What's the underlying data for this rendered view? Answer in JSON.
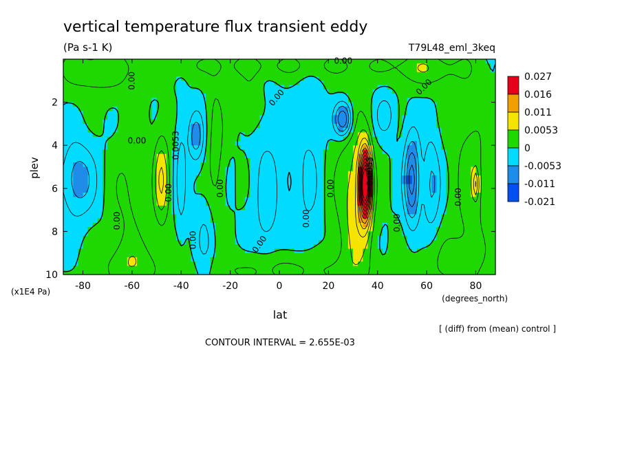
{
  "chart_data": {
    "type": "heatmap",
    "title": "vertical temperature flux transient eddy",
    "units": "(Pa s-1 K)",
    "experiment": "T79L48_eml_3keq",
    "xlabel": "lat",
    "xunits": "(degrees_north)",
    "ylabel": "plev",
    "yunits": "(x1E4 Pa)",
    "xlim": [
      -88,
      88
    ],
    "ylim": [
      10,
      0
    ],
    "x_ticks": [
      -80,
      -60,
      -40,
      -20,
      0,
      20,
      40,
      60,
      80
    ],
    "y_ticks": [
      2,
      4,
      6,
      8,
      10
    ],
    "legend_levels": [
      "0.027",
      "0.016",
      "0.011",
      "0.0053",
      "0",
      "-0.0053",
      "-0.011",
      "-0.021"
    ],
    "legend_colors": [
      "#e8001a",
      "#f2a000",
      "#f5e400",
      "#1ed800",
      "#00dcff",
      "#1e8ce8",
      "#0050f0"
    ],
    "contour_labels": [
      "0.00",
      "0.00",
      "0.00",
      "0.00",
      "0.00",
      "0.00",
      "0.00",
      "0.00",
      "0.00",
      "0.00",
      "0.00",
      "0.00",
      "0.00",
      "0.00",
      "0.0053",
      "0.0053"
    ],
    "contour_interval": "CONTOUR INTERVAL = 2.655E-03",
    "note": "[ (diff) from (mean) control ]"
  },
  "features": [
    {
      "lat": -82,
      "p": 5.6,
      "val": -0.007,
      "wx": 5,
      "wp": 1.2
    },
    {
      "lat": -62,
      "p": 6.5,
      "val": 0.003,
      "wx": 5,
      "wp": 2.2
    },
    {
      "lat": -48,
      "p": 5.6,
      "val": 0.008,
      "wx": 2.2,
      "wp": 1.5
    },
    {
      "lat": -40,
      "p": 5.5,
      "val": -0.004,
      "wx": 1.5,
      "wp": 2
    },
    {
      "lat": -34,
      "p": 3.6,
      "val": -0.007,
      "wx": 2.2,
      "wp": 0.8
    },
    {
      "lat": -26,
      "p": 4.2,
      "val": 0.004,
      "wx": 2.5,
      "wp": 2.5
    },
    {
      "lat": -30,
      "p": 8.5,
      "val": -0.003,
      "wx": 3,
      "wp": 1.5
    },
    {
      "lat": -5,
      "p": 6.5,
      "val": -0.004,
      "wx": 4,
      "wp": 2.5
    },
    {
      "lat": -12,
      "p": 2,
      "val": 0.003,
      "wx": 3,
      "wp": 1
    },
    {
      "lat": 12,
      "p": 5.5,
      "val": -0.003,
      "wx": 4,
      "wp": 3
    },
    {
      "lat": 26,
      "p": 2.8,
      "val": -0.012,
      "wx": 2.5,
      "wp": 0.55
    },
    {
      "lat": 35,
      "p": 5.8,
      "val": 0.03,
      "wx": 1.6,
      "wp": 1.1
    },
    {
      "lat": 33,
      "p": 6.5,
      "val": 0.006,
      "wx": 4,
      "wp": 2.5
    },
    {
      "lat": 27,
      "p": 6.5,
      "val": 0.003,
      "wx": 5,
      "wp": 3
    },
    {
      "lat": 43,
      "p": 2.6,
      "val": -0.004,
      "wx": 3,
      "wp": 0.7
    },
    {
      "lat": 54,
      "p": 5.6,
      "val": -0.012,
      "wx": 2.2,
      "wp": 1.4
    },
    {
      "lat": 62,
      "p": 5.8,
      "val": -0.006,
      "wx": 2.5,
      "wp": 1.5
    },
    {
      "lat": 78,
      "p": 5.5,
      "val": 0.004,
      "wx": 5,
      "wp": 3
    },
    {
      "lat": 80,
      "p": 5.8,
      "val": 0.007,
      "wx": 0.8,
      "wp": 0.5
    },
    {
      "lat": 0,
      "p": 9.8,
      "val": 0.004,
      "wx": 20,
      "wp": 0.6
    },
    {
      "lat": -60,
      "p": 9.6,
      "val": 0.004,
      "wx": 10,
      "wp": 0.8
    },
    {
      "lat": 70,
      "p": 9.5,
      "val": 0.003,
      "wx": 10,
      "wp": 1
    },
    {
      "lat": -75,
      "p": 0.6,
      "val": 0.004,
      "wx": 12,
      "wp": 0.8
    },
    {
      "lat": 60,
      "p": 0.5,
      "val": 0.004,
      "wx": 10,
      "wp": 0.6
    },
    {
      "lat": 0,
      "p": 0.3,
      "val": 0.003,
      "wx": 40,
      "wp": 0.4
    }
  ]
}
